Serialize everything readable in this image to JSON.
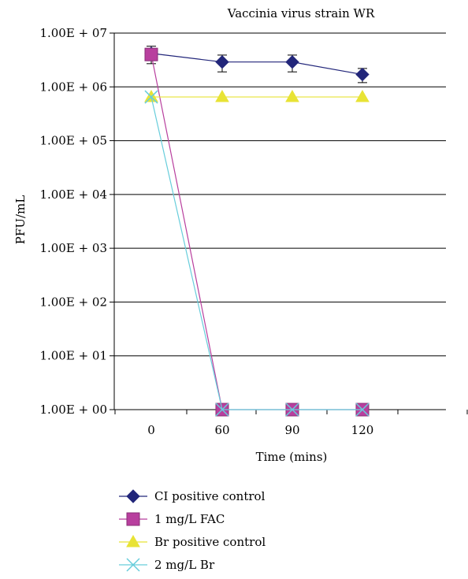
{
  "chart_data": {
    "type": "line",
    "title": "Vaccinia virus strain WR",
    "xlabel": "Time (mins)",
    "ylabel": "PFU/mL",
    "categories": [
      "0",
      "60",
      "90",
      "120"
    ],
    "y_scale": "log",
    "ylim": [
      1,
      10000000
    ],
    "y_tick_labels": [
      "1.00E + 07",
      "1.00E + 06",
      "1.00E + 05",
      "1.00E + 04",
      "1.00E + 03",
      "1.00E + 02",
      "1.00E + 01",
      "1.00E + 00"
    ],
    "grid": true,
    "legend_position": "bottom-left",
    "series": [
      {
        "name": "CI positive control",
        "color": "#22267a",
        "marker": "diamond",
        "values": [
          4200000,
          2900000,
          2900000,
          1700000
        ],
        "error": [
          1500000,
          1000000,
          1000000,
          500000
        ]
      },
      {
        "name": "1 mg/L FAC",
        "color": "#b83f9e",
        "marker": "square",
        "values": [
          4000000,
          1,
          1,
          1
        ]
      },
      {
        "name": "Br positive control",
        "color": "#e8e335",
        "marker": "triangle",
        "values": [
          650000,
          650000,
          650000,
          650000
        ]
      },
      {
        "name": "2 mg/L Br",
        "color": "#67cddb",
        "marker": "x",
        "values": [
          650000,
          1,
          1,
          1
        ]
      }
    ]
  }
}
